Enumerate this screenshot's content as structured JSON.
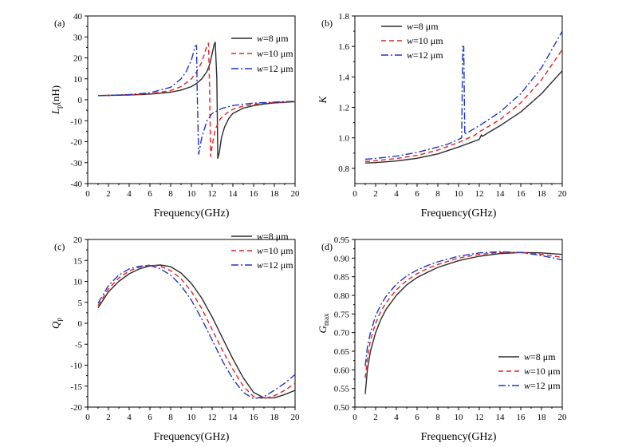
{
  "chart_data": [
    {
      "panel": "(a)",
      "type": "line",
      "xlabel": "Frequency(GHz)",
      "ylabel_main": "L",
      "ylabel_sub": "p",
      "ylabel_unit": "(nH)",
      "xlim": [
        0,
        20
      ],
      "ylim": [
        -40,
        40
      ],
      "xticks": [
        0,
        2,
        4,
        6,
        8,
        10,
        12,
        14,
        16,
        18,
        20
      ],
      "yticks": [
        -40,
        -30,
        -20,
        -10,
        0,
        10,
        20,
        30,
        40
      ],
      "legend_position": "top-right",
      "series": [
        {
          "name_var": "w",
          "name_rest": "=8 μm",
          "color": "#2b2b2b",
          "dash": "solid",
          "x": [
            1,
            2,
            4,
            6,
            8,
            9,
            10,
            10.5,
            11,
            11.5,
            11.8,
            12.0,
            12.2,
            12.3,
            12.45,
            12.55,
            12.7,
            12.9,
            13.2,
            13.6,
            14,
            15,
            16,
            17,
            18,
            20
          ],
          "y": [
            2,
            2.1,
            2.3,
            2.7,
            3.6,
            4.6,
            6.3,
            7.8,
            10,
            13.5,
            17.5,
            22,
            26.5,
            27.5,
            10,
            -28,
            -25,
            -18,
            -13,
            -9,
            -6.5,
            -4,
            -2.8,
            -2,
            -1.5,
            -0.9
          ]
        },
        {
          "name_var": "w",
          "name_rest": "=10 μm",
          "color": "#e8201e",
          "dash": "6,4",
          "x": [
            1,
            2,
            4,
            6,
            8,
            9,
            10,
            10.5,
            11,
            11.3,
            11.5,
            11.65,
            11.75,
            11.85,
            12.0,
            12.3,
            12.8,
            13.5,
            14,
            15,
            16,
            17,
            18,
            20
          ],
          "y": [
            2,
            2.1,
            2.4,
            2.9,
            4.4,
            6.3,
            10,
            13.3,
            18,
            22.5,
            26,
            27,
            5,
            -27,
            -22,
            -14,
            -9,
            -6,
            -4.5,
            -3,
            -2.2,
            -1.6,
            -1.3,
            -0.8
          ]
        },
        {
          "name_var": "w",
          "name_rest": "=12 μm",
          "color": "#2035c4",
          "dash": "9,3,2,3",
          "x": [
            1,
            2,
            4,
            6,
            8,
            9,
            9.5,
            10,
            10.2,
            10.35,
            10.5,
            10.55,
            10.7,
            11,
            11.5,
            12,
            13,
            14,
            15,
            16,
            18,
            20
          ],
          "y": [
            2,
            2.1,
            2.5,
            3.3,
            6,
            10,
            13.5,
            19,
            22.5,
            25.5,
            26,
            5,
            -26,
            -18,
            -10,
            -6.5,
            -4,
            -2.8,
            -2.1,
            -1.6,
            -1.1,
            -0.7
          ]
        }
      ]
    },
    {
      "panel": "(b)",
      "type": "line",
      "xlabel": "Frequency(GHz)",
      "ylabel_main": "K",
      "ylabel_sub": "",
      "ylabel_unit": "",
      "xlim": [
        0,
        20
      ],
      "ylim": [
        0.7,
        1.8
      ],
      "xticks": [
        0,
        2,
        4,
        6,
        8,
        10,
        12,
        14,
        16,
        18,
        20
      ],
      "yticks": [
        0.8,
        1.0,
        1.2,
        1.4,
        1.6,
        1.8
      ],
      "legend_position": "top-left",
      "series": [
        {
          "name_var": "w",
          "name_rest": "=8 μm",
          "color": "#2b2b2b",
          "dash": "solid",
          "x": [
            1,
            2,
            4,
            6,
            8,
            10,
            12,
            12.2,
            12.3,
            13,
            14,
            16,
            18,
            20
          ],
          "y": [
            0.835,
            0.838,
            0.848,
            0.866,
            0.895,
            0.94,
            0.99,
            1.02,
            1.01,
            1.04,
            1.08,
            1.17,
            1.29,
            1.44
          ]
        },
        {
          "name_var": "w",
          "name_rest": "=10 μm",
          "color": "#e8201e",
          "dash": "6,4",
          "x": [
            1,
            2,
            4,
            6,
            8,
            10,
            11,
            11.5,
            12,
            14,
            16,
            18,
            20
          ],
          "y": [
            0.845,
            0.85,
            0.865,
            0.885,
            0.92,
            0.97,
            1.0,
            1.015,
            1.04,
            1.12,
            1.23,
            1.38,
            1.58
          ]
        },
        {
          "name_var": "w",
          "name_rest": "=12 μm",
          "color": "#2035c4",
          "dash": "9,3,2,3",
          "x": [
            1,
            2,
            4,
            6,
            8,
            9,
            10,
            10.3,
            10.4,
            10.5,
            10.6,
            10.7,
            11,
            12,
            14,
            16,
            18,
            20
          ],
          "y": [
            0.86,
            0.865,
            0.88,
            0.905,
            0.94,
            0.96,
            0.99,
            1.0,
            1.6,
            1.6,
            1.02,
            1.03,
            1.04,
            1.08,
            1.17,
            1.29,
            1.46,
            1.7
          ]
        }
      ]
    },
    {
      "panel": "(c)",
      "type": "line",
      "xlabel": "Frequency(GHz)",
      "ylabel_main": "Q",
      "ylabel_sub": "p",
      "ylabel_unit": "",
      "xlim": [
        0,
        20
      ],
      "ylim": [
        -20,
        20
      ],
      "xticks": [
        0,
        2,
        4,
        6,
        8,
        10,
        12,
        14,
        16,
        18,
        20
      ],
      "yticks": [
        -20,
        -15,
        -10,
        -5,
        0,
        5,
        10,
        15,
        20
      ],
      "legend_position": "top-right",
      "series": [
        {
          "name_var": "w",
          "name_rest": "=8 μm",
          "color": "#2b2b2b",
          "dash": "solid",
          "x": [
            1,
            2,
            3,
            4,
            5,
            6,
            7,
            8,
            9,
            10,
            11,
            12,
            13,
            14,
            15,
            16,
            17,
            18,
            19,
            20
          ],
          "y": [
            3.7,
            7.5,
            10,
            11.8,
            13,
            13.7,
            13.9,
            13.5,
            12,
            9.5,
            6,
            1.5,
            -3.5,
            -8.5,
            -13,
            -16.5,
            -17.8,
            -17.8,
            -17,
            -16
          ]
        },
        {
          "name_var": "w",
          "name_rest": "=10 μm",
          "color": "#e8201e",
          "dash": "6,4",
          "x": [
            1,
            2,
            3,
            4,
            5,
            6,
            7,
            8,
            9,
            10,
            11,
            12,
            13,
            14,
            15,
            16,
            17,
            18,
            19,
            20
          ],
          "y": [
            4.2,
            8.2,
            10.8,
            12.5,
            13.4,
            13.9,
            13.6,
            12.6,
            10.6,
            7.6,
            3.5,
            -1.5,
            -6.5,
            -11,
            -15,
            -17.5,
            -18,
            -17.3,
            -16,
            -14.3
          ]
        },
        {
          "name_var": "w",
          "name_rest": "=12 μm",
          "color": "#2035c4",
          "dash": "9,3,2,3",
          "x": [
            1,
            2,
            3,
            4,
            5,
            6,
            7,
            8,
            9,
            10,
            11,
            12,
            13,
            14,
            15,
            16,
            17,
            18,
            19,
            20
          ],
          "y": [
            4.8,
            9,
            11.5,
            13,
            13.6,
            13.8,
            13,
            11.5,
            9,
            5.5,
            1,
            -4,
            -9,
            -13.3,
            -16.5,
            -18,
            -17.5,
            -16,
            -14.3,
            -12.2
          ]
        }
      ]
    },
    {
      "panel": "(d)",
      "type": "line",
      "xlabel": "Frequency(GHz)",
      "ylabel_main": "G",
      "ylabel_sub": "max",
      "ylabel_unit": "",
      "xlim": [
        0,
        20
      ],
      "ylim": [
        0.5,
        0.95
      ],
      "xticks": [
        0,
        2,
        4,
        6,
        8,
        10,
        12,
        14,
        16,
        18,
        20
      ],
      "yticks": [
        0.5,
        0.55,
        0.6,
        0.65,
        0.7,
        0.75,
        0.8,
        0.85,
        0.9,
        0.95
      ],
      "legend_position": "bottom-right",
      "series": [
        {
          "name_var": "w",
          "name_rest": "=8 μm",
          "color": "#2b2b2b",
          "dash": "solid",
          "x": [
            1,
            1.2,
            1.5,
            2,
            2.5,
            3,
            4,
            5,
            6,
            7,
            8,
            10,
            12,
            14,
            16,
            18,
            20
          ],
          "y": [
            0.535,
            0.6,
            0.65,
            0.7,
            0.735,
            0.762,
            0.8,
            0.828,
            0.848,
            0.862,
            0.875,
            0.893,
            0.905,
            0.912,
            0.915,
            0.914,
            0.91
          ]
        },
        {
          "name_var": "w",
          "name_rest": "=10 μm",
          "color": "#e8201e",
          "dash": "6,4",
          "x": [
            1,
            1.2,
            1.5,
            2,
            2.5,
            3,
            4,
            5,
            6,
            7,
            8,
            10,
            12,
            14,
            16,
            18,
            20
          ],
          "y": [
            0.578,
            0.63,
            0.68,
            0.725,
            0.757,
            0.78,
            0.815,
            0.84,
            0.858,
            0.872,
            0.883,
            0.9,
            0.91,
            0.915,
            0.915,
            0.91,
            0.902
          ]
        },
        {
          "name_var": "w",
          "name_rest": "=12 μm",
          "color": "#2035c4",
          "dash": "9,3,2,3",
          "x": [
            1,
            1.2,
            1.5,
            2,
            2.5,
            3,
            4,
            5,
            6,
            7,
            8,
            10,
            12,
            14,
            16,
            18,
            20
          ],
          "y": [
            0.61,
            0.66,
            0.7,
            0.745,
            0.775,
            0.797,
            0.83,
            0.852,
            0.868,
            0.88,
            0.89,
            0.905,
            0.914,
            0.917,
            0.915,
            0.907,
            0.895
          ]
        }
      ]
    }
  ]
}
